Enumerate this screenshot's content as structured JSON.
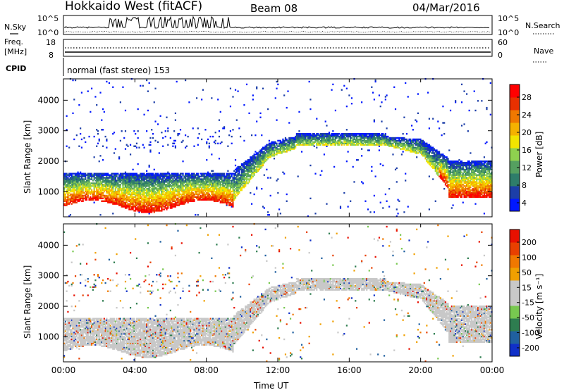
{
  "header": {
    "title": "Hokkaido West (fitACF)",
    "beam": "Beam 08",
    "date": "04/Mar/2016"
  },
  "sky_panel": {
    "left_label": "N.Sky",
    "right_label": "N.Search",
    "left_ticks": [
      "10^5",
      "10^0"
    ],
    "right_ticks": [
      "10^5",
      "10^0"
    ]
  },
  "freq_panel": {
    "left_label_line1": "Freq.",
    "left_label_line2": "[MHz]",
    "right_label": "Nave",
    "left_ticks": [
      "18",
      "8"
    ],
    "right_ticks": [
      "60",
      "0"
    ]
  },
  "cpid_panel": {
    "label": "CPID",
    "text": "normal (fast stereo) 153"
  },
  "colors": {
    "power_scale": [
      "#0018ff",
      "#1c3ea8",
      "#2e7d6a",
      "#55a060",
      "#8fd14f",
      "#f2e400",
      "#f5b200",
      "#f07800",
      "#e83000",
      "#ff0000"
    ],
    "velocity_scale": [
      "#1030c8",
      "#2060a0",
      "#2e7d50",
      "#78c850",
      "#c8c8c8",
      "#c8c8c8",
      "#f0a000",
      "#f07800",
      "#e84000",
      "#e81000"
    ],
    "ground_scatter": "#c8c8c8"
  },
  "chart_data": [
    {
      "type": "heatmap",
      "name": "Power",
      "ylabel": "Slant Range [km]",
      "xlabel": "",
      "x_ticks": [
        "00:00",
        "04:00",
        "08:00",
        "12:00",
        "16:00",
        "20:00",
        "00:00"
      ],
      "x_range_hours": [
        0,
        24
      ],
      "y_ticks": [
        1000,
        2000,
        3000,
        4000
      ],
      "ylim": [
        180,
        4700
      ],
      "colorbar_label": "Power [dB]",
      "colorbar_ticks": [
        "28",
        "24",
        "20",
        "16",
        "12",
        "8",
        "4"
      ],
      "colorbar_range": [
        0,
        30
      ]
    },
    {
      "type": "heatmap",
      "name": "Velocity",
      "ylabel": "Slant Range [km]",
      "xlabel": "Time UT",
      "x_ticks": [
        "00:00",
        "04:00",
        "08:00",
        "12:00",
        "16:00",
        "20:00",
        "00:00"
      ],
      "x_range_hours": [
        0,
        24
      ],
      "y_ticks": [
        1000,
        2000,
        3000,
        4000
      ],
      "ylim": [
        180,
        4700
      ],
      "colorbar_label": "Velocity [m s⁻¹]",
      "colorbar_ticks": [
        "200",
        "100",
        "50",
        "15",
        "-15",
        "-50",
        "-100",
        "-200"
      ],
      "colorbar_range": [
        -250,
        250
      ]
    }
  ]
}
